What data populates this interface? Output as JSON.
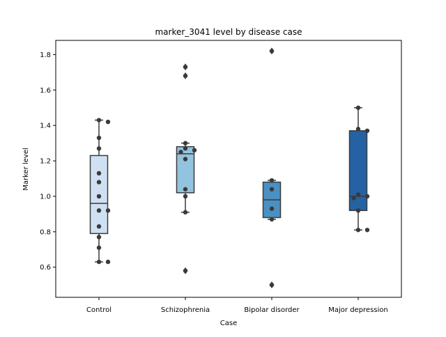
{
  "chart_data": {
    "type": "box",
    "title": "marker_3041 level by disease case",
    "xlabel": "Case",
    "ylabel": "Marker level",
    "ylim": [
      0.43,
      1.88
    ],
    "yticks": [
      "0.6",
      "0.8",
      "1.0",
      "1.2",
      "1.4",
      "1.6",
      "1.8"
    ],
    "grid": false,
    "categories": [
      "Control",
      "Schizophrenia",
      "Bipolar disorder",
      "Major depression"
    ],
    "colors": [
      "#cfe0f2",
      "#93c4df",
      "#4a90c2",
      "#2462a3"
    ],
    "boxes": [
      {
        "category": "Control",
        "whisker_low": 0.63,
        "q1": 0.79,
        "median": 0.96,
        "q3": 1.23,
        "whisker_high": 1.43,
        "outliers": []
      },
      {
        "category": "Schizophrenia",
        "whisker_low": 0.91,
        "q1": 1.02,
        "median": 1.24,
        "q3": 1.28,
        "whisker_high": 1.3,
        "outliers": [
          0.58,
          1.68,
          1.73
        ]
      },
      {
        "category": "Bipolar disorder",
        "whisker_low": 0.87,
        "q1": 0.88,
        "median": 0.98,
        "q3": 1.08,
        "whisker_high": 1.09,
        "outliers": [
          0.5,
          1.82
        ]
      },
      {
        "category": "Major depression",
        "whisker_low": 0.81,
        "q1": 0.92,
        "median": 1.0,
        "q3": 1.37,
        "whisker_high": 1.5,
        "outliers": []
      }
    ],
    "points": [
      {
        "category": "Control",
        "values": [
          1.43,
          1.42,
          1.33,
          1.27,
          1.13,
          1.08,
          1.0,
          0.92,
          0.92,
          0.83,
          0.77,
          0.71,
          0.63,
          0.63
        ]
      },
      {
        "category": "Schizophrenia",
        "values": [
          1.73,
          1.68,
          1.3,
          1.27,
          1.26,
          1.25,
          1.21,
          1.04,
          1.0,
          0.91,
          0.58
        ]
      },
      {
        "category": "Bipolar disorder",
        "values": [
          1.82,
          1.09,
          1.04,
          0.93,
          0.87,
          0.5
        ]
      },
      {
        "category": "Major depression",
        "values": [
          1.5,
          1.38,
          1.37,
          1.01,
          1.0,
          0.99,
          0.92,
          0.81,
          0.81
        ]
      }
    ]
  }
}
